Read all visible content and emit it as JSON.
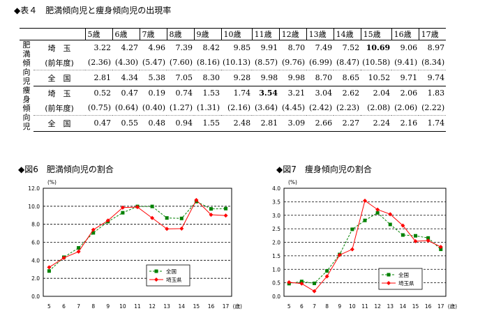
{
  "table_title": "◆表４　肥満傾向児と痩身傾向児の出現率",
  "chart1_title": "◆図6　肥満傾向児の割合",
  "chart2_title": "◆図7　痩身傾向児の割合",
  "table": {
    "headers": [
      "5歳",
      "6歳",
      "7歳",
      "8歳",
      "9歳",
      "10歳",
      "11歳",
      "12歳",
      "13歳",
      "14歳",
      "15歳",
      "16歳",
      "17歳"
    ],
    "groups": [
      {
        "label": [
          "肥",
          "満",
          "傾",
          "向",
          "児"
        ],
        "rows": [
          {
            "label": "埼　玉",
            "values": [
              "3.22",
              "4.27",
              "4.96",
              "7.39",
              "8.42",
              "9.85",
              "9.91",
              "8.70",
              "7.49",
              "7.52",
              "10.69",
              "9.06",
              "8.97"
            ],
            "bold_index": 10
          },
          {
            "label": "(前年度)",
            "values": [
              "(2.36)",
              "(4.30)",
              "(5.47)",
              "(7.60)",
              "(8.16)",
              "(10.13)",
              "(8.57)",
              "(9.76)",
              "(6.99)",
              "(8.47)",
              "(10.58)",
              "(9.41)",
              "(8.34)"
            ],
            "bold_index": -1
          },
          {
            "label": "全　国",
            "values": [
              "2.81",
              "4.34",
              "5.38",
              "7.05",
              "8.30",
              "9.28",
              "9.98",
              "9.98",
              "8.70",
              "8.65",
              "10.52",
              "9.71",
              "9.74"
            ],
            "bold_index": -1
          }
        ]
      },
      {
        "label": [
          "痩",
          "身",
          "傾",
          "向",
          "児"
        ],
        "rows": [
          {
            "label": "埼　玉",
            "values": [
              "0.52",
              "0.47",
              "0.19",
              "0.74",
              "1.53",
              "1.74",
              "3.54",
              "3.21",
              "3.04",
              "2.62",
              "2.04",
              "2.06",
              "1.83"
            ],
            "bold_index": 6
          },
          {
            "label": "(前年度)",
            "values": [
              "(0.75)",
              "(0.64)",
              "(0.40)",
              "(1.27)",
              "(1.31)",
              "(2.16)",
              "(3.64)",
              "(4.45)",
              "(2.42)",
              "(2.23)",
              "(2.08)",
              "(2.06)",
              "(2.22)"
            ],
            "bold_index": -1
          },
          {
            "label": "全　国",
            "values": [
              "0.47",
              "0.55",
              "0.48",
              "0.94",
              "1.55",
              "2.48",
              "2.81",
              "3.09",
              "2.66",
              "2.27",
              "2.24",
              "2.16",
              "1.74"
            ],
            "bold_index": -1
          }
        ]
      }
    ]
  },
  "chart_data": [
    {
      "type": "line",
      "title": "◆図6　肥満傾向児の割合",
      "ylabel": "(%)",
      "xlabel": "(歳)",
      "x": [
        5,
        6,
        7,
        8,
        9,
        10,
        11,
        12,
        13,
        14,
        15,
        16,
        17
      ],
      "ylim": [
        0,
        12
      ],
      "yticks": [
        "0.0",
        "2.0",
        "4.0",
        "6.0",
        "8.0",
        "10.0",
        "12.0"
      ],
      "grid": true,
      "legend": "bottom-right",
      "series": [
        {
          "name": "全国",
          "color": "#008000",
          "marker": "square",
          "dash": true,
          "values": [
            2.81,
            4.34,
            5.38,
            7.05,
            8.3,
            9.28,
            9.98,
            9.98,
            8.7,
            8.65,
            10.52,
            9.71,
            9.74
          ]
        },
        {
          "name": "埼玉県",
          "color": "#ff0000",
          "marker": "diamond",
          "dash": false,
          "values": [
            3.22,
            4.27,
            4.96,
            7.39,
            8.42,
            9.85,
            9.91,
            8.7,
            7.49,
            7.52,
            10.69,
            9.06,
            8.97
          ]
        }
      ]
    },
    {
      "type": "line",
      "title": "◆図7　痩身傾向児の割合",
      "ylabel": "(%)",
      "xlabel": "(歳)",
      "x": [
        5,
        6,
        7,
        8,
        9,
        10,
        11,
        12,
        13,
        14,
        15,
        16,
        17
      ],
      "ylim": [
        0,
        4
      ],
      "yticks": [
        "0.0",
        "0.5",
        "1.0",
        "1.5",
        "2.0",
        "2.5",
        "3.0",
        "3.5",
        "4.0"
      ],
      "grid": true,
      "legend": "bottom-right",
      "series": [
        {
          "name": "全国",
          "color": "#008000",
          "marker": "square",
          "dash": true,
          "values": [
            0.47,
            0.55,
            0.48,
            0.94,
            1.55,
            2.48,
            2.81,
            3.09,
            2.66,
            2.27,
            2.24,
            2.16,
            1.74
          ]
        },
        {
          "name": "埼玉県",
          "color": "#ff0000",
          "marker": "diamond",
          "dash": false,
          "values": [
            0.52,
            0.47,
            0.19,
            0.74,
            1.53,
            1.74,
            3.54,
            3.21,
            3.04,
            2.62,
            2.04,
            2.06,
            1.83
          ]
        }
      ]
    }
  ]
}
